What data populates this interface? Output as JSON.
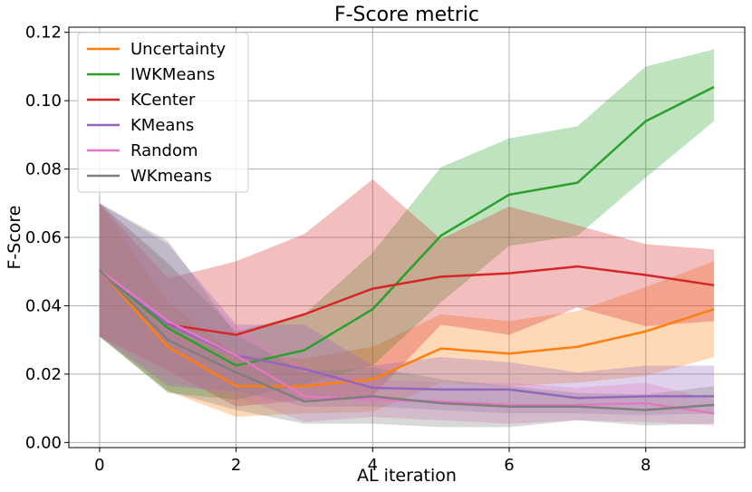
{
  "chart_data": {
    "type": "line",
    "title": "F-Score metric",
    "xlabel": "AL iteration",
    "ylabel": "F-Score",
    "xlim": [
      -0.45,
      9.45
    ],
    "ylim": [
      -0.0015,
      0.1215
    ],
    "xticks": [
      0,
      2,
      4,
      6,
      8
    ],
    "xtick_labels": [
      "0",
      "2",
      "4",
      "6",
      "8"
    ],
    "yticks": [
      0.0,
      0.02,
      0.04,
      0.06,
      0.08,
      0.1,
      0.12
    ],
    "ytick_labels": [
      "0.00",
      "0.02",
      "0.04",
      "0.06",
      "0.08",
      "0.10",
      "0.12"
    ],
    "grid": true,
    "legend_position": "top-left",
    "x": [
      0,
      1,
      2,
      3,
      4,
      5,
      6,
      7,
      8,
      9
    ],
    "series": [
      {
        "name": "Uncertainty",
        "color": "#ff7f0e",
        "values": [
          0.0505,
          0.028,
          0.0165,
          0.0165,
          0.0185,
          0.0275,
          0.026,
          0.028,
          0.0325,
          0.039
        ],
        "lower": [
          0.031,
          0.015,
          0.0075,
          0.0085,
          0.009,
          0.0175,
          0.0165,
          0.0175,
          0.0195,
          0.025
        ],
        "upper": [
          0.07,
          0.041,
          0.0255,
          0.0245,
          0.028,
          0.0375,
          0.0355,
          0.0385,
          0.0455,
          0.053
        ]
      },
      {
        "name": "IWKMeans",
        "color": "#2ca02c",
        "values": [
          0.0505,
          0.0335,
          0.0225,
          0.027,
          0.039,
          0.0605,
          0.0725,
          0.076,
          0.094,
          0.104
        ],
        "lower": [
          0.031,
          0.0145,
          0.0125,
          0.017,
          0.0225,
          0.041,
          0.0575,
          0.0605,
          0.0775,
          0.094
        ],
        "upper": [
          0.07,
          0.0525,
          0.0325,
          0.0375,
          0.0555,
          0.0805,
          0.089,
          0.0925,
          0.11,
          0.115
        ]
      },
      {
        "name": "KCenter",
        "color": "#d62728",
        "values": [
          0.0505,
          0.0345,
          0.0315,
          0.0375,
          0.045,
          0.0485,
          0.0495,
          0.0515,
          0.049,
          0.046
        ],
        "lower": [
          0.031,
          0.021,
          0.0105,
          0.0125,
          0.0135,
          0.0345,
          0.0315,
          0.0395,
          0.034,
          0.0355
        ],
        "upper": [
          0.07,
          0.048,
          0.053,
          0.061,
          0.077,
          0.0595,
          0.069,
          0.0635,
          0.058,
          0.0565
        ]
      },
      {
        "name": "KMeans",
        "color": "#9467bd",
        "values": [
          0.0505,
          0.0345,
          0.0255,
          0.0215,
          0.016,
          0.0155,
          0.0155,
          0.013,
          0.0135,
          0.0135
        ],
        "lower": [
          0.031,
          0.0165,
          0.015,
          0.0105,
          0.0105,
          0.0095,
          0.0085,
          0.0085,
          0.008,
          0.0085
        ],
        "upper": [
          0.07,
          0.058,
          0.0345,
          0.0345,
          0.0225,
          0.025,
          0.0235,
          0.0205,
          0.0225,
          0.0225
        ]
      },
      {
        "name": "Random",
        "color": "#e377c2",
        "values": [
          0.0505,
          0.0355,
          0.0255,
          0.0135,
          0.0125,
          0.012,
          0.011,
          0.011,
          0.0115,
          0.0085
        ],
        "lower": [
          0.031,
          0.0175,
          0.0135,
          0.006,
          0.0075,
          0.0065,
          0.0055,
          0.0065,
          0.006,
          0.005
        ],
        "upper": [
          0.07,
          0.052,
          0.034,
          0.0215,
          0.0185,
          0.0175,
          0.0175,
          0.016,
          0.0175,
          0.0125
        ]
      },
      {
        "name": "WKmeans",
        "color": "#7f7f7f",
        "values": [
          0.0505,
          0.03,
          0.0205,
          0.012,
          0.0135,
          0.0115,
          0.0105,
          0.0105,
          0.0095,
          0.011
        ],
        "lower": [
          0.031,
          0.015,
          0.0095,
          0.0055,
          0.0055,
          0.0045,
          0.0045,
          0.0065,
          0.005,
          0.0055
        ],
        "upper": [
          0.07,
          0.059,
          0.0315,
          0.0205,
          0.022,
          0.0185,
          0.0165,
          0.0145,
          0.014,
          0.0165
        ]
      }
    ]
  }
}
